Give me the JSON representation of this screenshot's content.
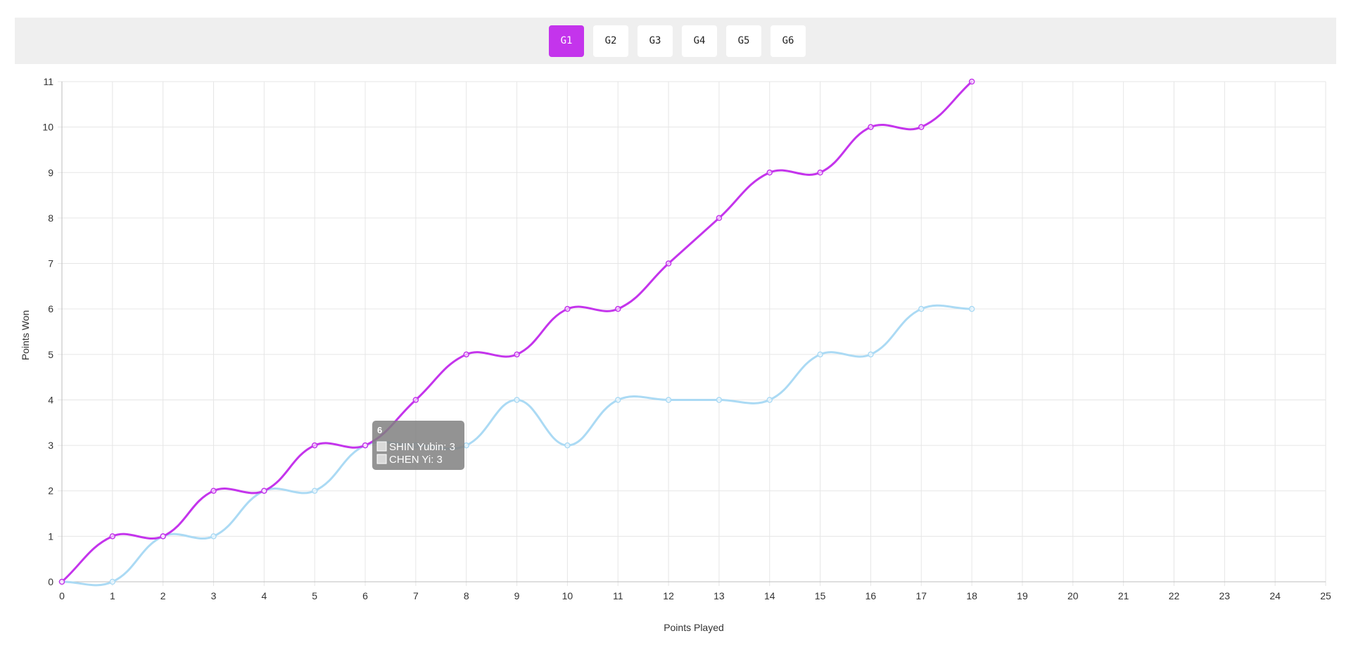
{
  "tabs": [
    {
      "label": "G1",
      "active": true
    },
    {
      "label": "G2",
      "active": false
    },
    {
      "label": "G3",
      "active": false
    },
    {
      "label": "G4",
      "active": false
    },
    {
      "label": "G5",
      "active": false
    },
    {
      "label": "G6",
      "active": false
    }
  ],
  "colors": {
    "accent": "#c434ec",
    "series_1": "#c434ec",
    "series_2": "#abdaf4",
    "grid": "#e6e6e6",
    "tooltip_bg": "#808080"
  },
  "chart_data": {
    "type": "line",
    "xlabel": "Points Played",
    "ylabel": "Points Won",
    "xlim": [
      0,
      25
    ],
    "ylim": [
      0,
      11
    ],
    "x_ticks": [
      0,
      1,
      2,
      3,
      4,
      5,
      6,
      7,
      8,
      9,
      10,
      11,
      12,
      13,
      14,
      15,
      16,
      17,
      18,
      19,
      20,
      21,
      22,
      23,
      24,
      25
    ],
    "y_ticks": [
      0,
      1,
      2,
      3,
      4,
      5,
      6,
      7,
      8,
      9,
      10,
      11
    ],
    "grid": true,
    "legend": "none",
    "series": [
      {
        "name": "SHIN Yubin",
        "color": "#c434ec",
        "x": [
          0,
          1,
          2,
          3,
          4,
          5,
          6,
          7,
          8,
          9,
          10,
          11,
          12,
          13,
          14,
          15,
          16,
          17,
          18
        ],
        "values": [
          0,
          1,
          1,
          2,
          2,
          3,
          3,
          4,
          5,
          5,
          6,
          6,
          7,
          8,
          9,
          9,
          10,
          10,
          11
        ]
      },
      {
        "name": "CHEN Yi",
        "color": "#abdaf4",
        "x": [
          0,
          1,
          2,
          3,
          4,
          5,
          6,
          7,
          8,
          9,
          10,
          11,
          12,
          13,
          14,
          15,
          16,
          17,
          18
        ],
        "values": [
          0,
          0,
          1,
          1,
          2,
          2,
          3,
          3,
          3,
          4,
          3,
          4,
          4,
          4,
          4,
          5,
          5,
          6,
          6
        ]
      }
    ],
    "tooltip": {
      "title": "6",
      "x": 6,
      "items": [
        {
          "text": "SHIN Yubin: 3",
          "series": 0
        },
        {
          "text": "CHEN Yi: 3",
          "series": 1
        }
      ]
    }
  }
}
